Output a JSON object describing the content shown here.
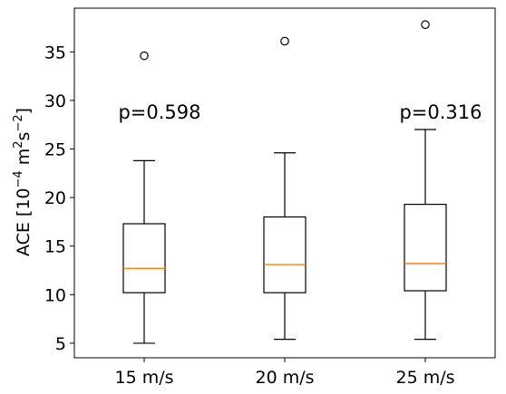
{
  "chart_data": {
    "type": "box",
    "categories": [
      "15 m/s",
      "20 m/s",
      "25 m/s"
    ],
    "ylabel": {
      "base": "ACE [10",
      "exp1": "−4",
      "mid": " m",
      "exp2": "2",
      "mid2": "s",
      "exp3": "−2",
      "end": "]"
    },
    "yticks": [
      5,
      10,
      15,
      20,
      25,
      30,
      35
    ],
    "ylim": [
      3.5,
      39.5
    ],
    "series": [
      {
        "category": "15 m/s",
        "whisker_low": 5.0,
        "q1": 10.2,
        "median": 12.7,
        "q3": 17.3,
        "whisker_high": 23.8,
        "outliers": [
          34.6
        ]
      },
      {
        "category": "20 m/s",
        "whisker_low": 5.4,
        "q1": 10.2,
        "median": 13.1,
        "q3": 18.0,
        "whisker_high": 24.6,
        "outliers": [
          36.1
        ]
      },
      {
        "category": "25 m/s",
        "whisker_low": 5.4,
        "q1": 10.4,
        "median": 13.2,
        "q3": 19.3,
        "whisker_high": 27.0,
        "outliers": [
          37.8
        ]
      }
    ],
    "annotations": [
      {
        "text": "p=0.598",
        "category": "15 m/s",
        "y": 28.1
      },
      {
        "text": "p=0.316",
        "category": "25 m/s",
        "y": 28.1
      }
    ],
    "colors": {
      "box": "#000000",
      "median": "#ff7f0e",
      "background": "#ffffff"
    },
    "grid": false,
    "legend": "none"
  }
}
